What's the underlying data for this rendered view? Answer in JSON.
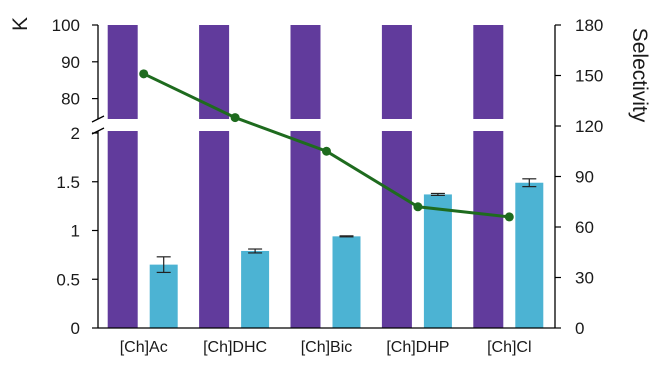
{
  "chart_data": {
    "type": "bar",
    "categories": [
      "[Ch]Ac",
      "[Ch]DHC",
      "[Ch]Bic",
      "[Ch]DHP",
      "[Ch]Cl"
    ],
    "ylabel": "K",
    "y2label": "Selectivity",
    "y_lower_range": [
      0,
      2
    ],
    "y_upper_range": [
      75,
      100
    ],
    "y_lower_ticks": [
      "0",
      "0.5",
      "1",
      "1.5",
      "2"
    ],
    "y_upper_ticks": [
      "80",
      "90",
      "100"
    ],
    "y2_range": [
      0,
      180
    ],
    "y2_ticks": [
      "0",
      "30",
      "60",
      "90",
      "120",
      "150",
      "180"
    ],
    "y_axis_broken": true,
    "series": [
      {
        "values": [
          100,
          100,
          100,
          100,
          100
        ],
        "color": "#613b9c",
        "axis": "left"
      },
      {
        "values": [
          0.65,
          0.79,
          0.94,
          1.37,
          1.49
        ],
        "errors": [
          0.08,
          0.02,
          0.005,
          0.01,
          0.04
        ],
        "color": "#4cb3d3",
        "axis": "left"
      },
      {
        "type": "line",
        "values": [
          151,
          125,
          105,
          72,
          66
        ],
        "color": "#1e6b1e",
        "axis": "right"
      }
    ]
  }
}
